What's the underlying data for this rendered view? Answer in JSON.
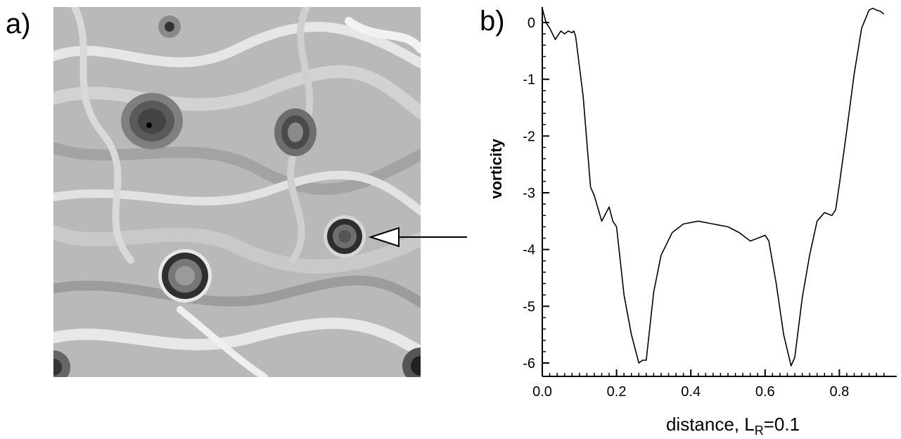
{
  "panels": {
    "a": "a)",
    "b": "b)"
  },
  "image": {
    "palette": [
      "#9a9a9a",
      "#c4c4c4",
      "#d6d6d6",
      "#ededed",
      "#7f7f7f",
      "#5a5a5a",
      "#2e2e2e"
    ]
  },
  "chart_data": {
    "type": "line",
    "xlabel": "distance, L",
    "xlabel_sub": "R",
    "xlabel_suffix": "=0.1",
    "ylabel": "vorticity",
    "xlim": [
      0,
      0.93
    ],
    "ylim": [
      -6.2,
      0.3
    ],
    "xticks": [
      0,
      0.2,
      0.4,
      0.6,
      0.8
    ],
    "xtick_labels": [
      "0.0",
      "0.2",
      "0.4",
      "0.6",
      "0.8"
    ],
    "yticks": [
      0,
      -1,
      -2,
      -3,
      -4,
      -5,
      -6
    ],
    "ytick_labels": [
      "0",
      "-1",
      "-2",
      "-3",
      "-4",
      "-5",
      "-6"
    ],
    "grid": false,
    "line_color": "#000000",
    "series": [
      {
        "x": [
          0.0,
          0.01,
          0.02,
          0.035,
          0.05,
          0.06,
          0.07,
          0.08,
          0.085,
          0.09,
          0.11,
          0.13,
          0.14,
          0.16,
          0.18,
          0.19,
          0.2,
          0.22,
          0.24,
          0.26,
          0.27,
          0.28,
          0.3,
          0.32,
          0.35,
          0.38,
          0.42,
          0.46,
          0.5,
          0.53,
          0.56,
          0.6,
          0.61,
          0.63,
          0.65,
          0.67,
          0.68,
          0.7,
          0.72,
          0.74,
          0.76,
          0.78,
          0.79,
          0.8,
          0.82,
          0.84,
          0.86,
          0.88,
          0.89,
          0.9,
          0.91,
          0.92
        ],
        "y": [
          0.25,
          0.0,
          -0.1,
          -0.3,
          -0.15,
          -0.2,
          -0.15,
          -0.18,
          -0.15,
          -0.25,
          -1.3,
          -2.9,
          -3.05,
          -3.5,
          -3.25,
          -3.5,
          -3.6,
          -4.8,
          -5.5,
          -6.0,
          -5.95,
          -5.95,
          -4.75,
          -4.1,
          -3.7,
          -3.55,
          -3.5,
          -3.55,
          -3.6,
          -3.7,
          -3.85,
          -3.75,
          -3.85,
          -4.6,
          -5.5,
          -6.05,
          -5.9,
          -4.85,
          -4.1,
          -3.5,
          -3.35,
          -3.4,
          -3.3,
          -2.85,
          -1.9,
          -0.9,
          -0.1,
          0.22,
          0.25,
          0.22,
          0.2,
          0.15
        ]
      }
    ]
  }
}
